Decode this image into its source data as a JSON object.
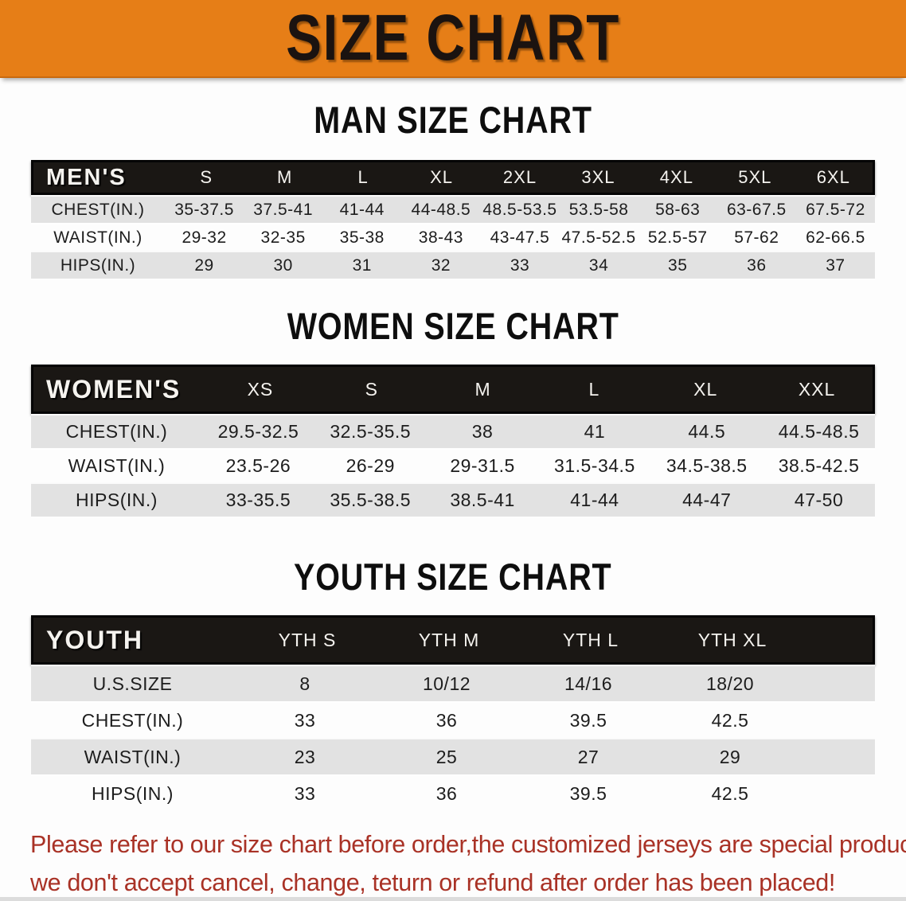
{
  "banner": {
    "title": "SIZE CHART"
  },
  "sections": [
    {
      "title": "MAN SIZE CHART",
      "header_label": "MEN'S",
      "columns": [
        "S",
        "M",
        "L",
        "XL",
        "2XL",
        "3XL",
        "4XL",
        "5XL",
        "6XL"
      ],
      "rows": [
        {
          "label": "CHEST(IN.)",
          "values": [
            "35-37.5",
            "37.5-41",
            "41-44",
            "44-48.5",
            "48.5-53.5",
            "53.5-58",
            "58-63",
            "63-67.5",
            "67.5-72"
          ]
        },
        {
          "label": "WAIST(IN.)",
          "values": [
            "29-32",
            "32-35",
            "35-38",
            "38-43",
            "43-47.5",
            "47.5-52.5",
            "52.5-57",
            "57-62",
            "62-66.5"
          ]
        },
        {
          "label": "HIPS(IN.)",
          "values": [
            "29",
            "30",
            "31",
            "32",
            "33",
            "34",
            "35",
            "36",
            "37"
          ]
        }
      ]
    },
    {
      "title": "WOMEN SIZE CHART",
      "header_label": "WOMEN'S",
      "columns": [
        "XS",
        "S",
        "M",
        "L",
        "XL",
        "XXL"
      ],
      "rows": [
        {
          "label": "CHEST(IN.)",
          "values": [
            "29.5-32.5",
            "32.5-35.5",
            "38",
            "41",
            "44.5",
            "44.5-48.5"
          ]
        },
        {
          "label": "WAIST(IN.)",
          "values": [
            "23.5-26",
            "26-29",
            "29-31.5",
            "31.5-34.5",
            "34.5-38.5",
            "38.5-42.5"
          ]
        },
        {
          "label": "HIPS(IN.)",
          "values": [
            "33-35.5",
            "35.5-38.5",
            "38.5-41",
            "41-44",
            "44-47",
            "47-50"
          ]
        }
      ]
    },
    {
      "title": "YOUTH SIZE CHART",
      "header_label": "YOUTH",
      "columns": [
        "YTH S",
        "YTH M",
        "YTH L",
        "YTH XL"
      ],
      "rows": [
        {
          "label": "U.S.SIZE",
          "values": [
            "8",
            "10/12",
            "14/16",
            "18/20"
          ]
        },
        {
          "label": "CHEST(IN.)",
          "values": [
            "33",
            "36",
            "39.5",
            "42.5"
          ]
        },
        {
          "label": "WAIST(IN.)",
          "values": [
            "23",
            "25",
            "27",
            "29"
          ]
        },
        {
          "label": "HIPS(IN.)",
          "values": [
            "33",
            "36",
            "39.5",
            "42.5"
          ]
        }
      ]
    }
  ],
  "disclaimer": {
    "line1": "Please refer to our size chart before order,the customized jerseys are special products,",
    "line2": "we don't accept cancel, change, teturn or refund after order has been placed!"
  },
  "colors": {
    "banner_orange": "#E67E17",
    "banner_text": "#1b1310",
    "table_header_black": "#1a1714",
    "row_gray": "#e2e2e2",
    "disclaimer_red": "#a93226"
  }
}
